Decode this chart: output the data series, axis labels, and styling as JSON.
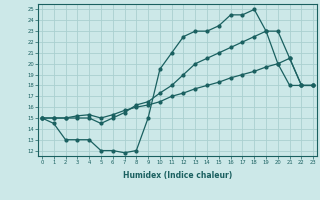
{
  "bg_color": "#cce8e8",
  "grid_color": "#aad0d0",
  "line_color": "#1a6060",
  "xlabel": "Humidex (Indice chaleur)",
  "x_vals": [
    0,
    1,
    2,
    3,
    4,
    5,
    6,
    7,
    8,
    9,
    10,
    11,
    12,
    13,
    14,
    15,
    16,
    17,
    18,
    19,
    20,
    21,
    22,
    23
  ],
  "line1": [
    15,
    14.5,
    13,
    13,
    13,
    12,
    12,
    11.8,
    12,
    15,
    19.5,
    21,
    22.5,
    23,
    23,
    23.5,
    24.5,
    24.5,
    25,
    23,
    20,
    18,
    18,
    18
  ],
  "line2": [
    15,
    15.0,
    15.0,
    15.2,
    15.3,
    15.0,
    15.3,
    15.7,
    16.0,
    16.2,
    16.5,
    17.0,
    17.3,
    17.7,
    18.0,
    18.3,
    18.7,
    19.0,
    19.3,
    19.7,
    20.0,
    20.5,
    18.0,
    18.0
  ],
  "line3": [
    15,
    15.0,
    15.0,
    15.0,
    15.0,
    14.5,
    15.0,
    15.5,
    16.2,
    16.5,
    17.3,
    18.0,
    19.0,
    20.0,
    20.5,
    21.0,
    21.5,
    22.0,
    22.5,
    23.0,
    23.0,
    20.5,
    18.0,
    18.0
  ],
  "xlim": [
    -0.3,
    23.3
  ],
  "ylim": [
    11.5,
    25.5
  ],
  "xticks": [
    0,
    1,
    2,
    3,
    4,
    5,
    6,
    7,
    8,
    9,
    10,
    11,
    12,
    13,
    14,
    15,
    16,
    17,
    18,
    19,
    20,
    21,
    22,
    23
  ],
  "yticks": [
    12,
    13,
    14,
    15,
    16,
    17,
    18,
    19,
    20,
    21,
    22,
    23,
    24,
    25
  ]
}
